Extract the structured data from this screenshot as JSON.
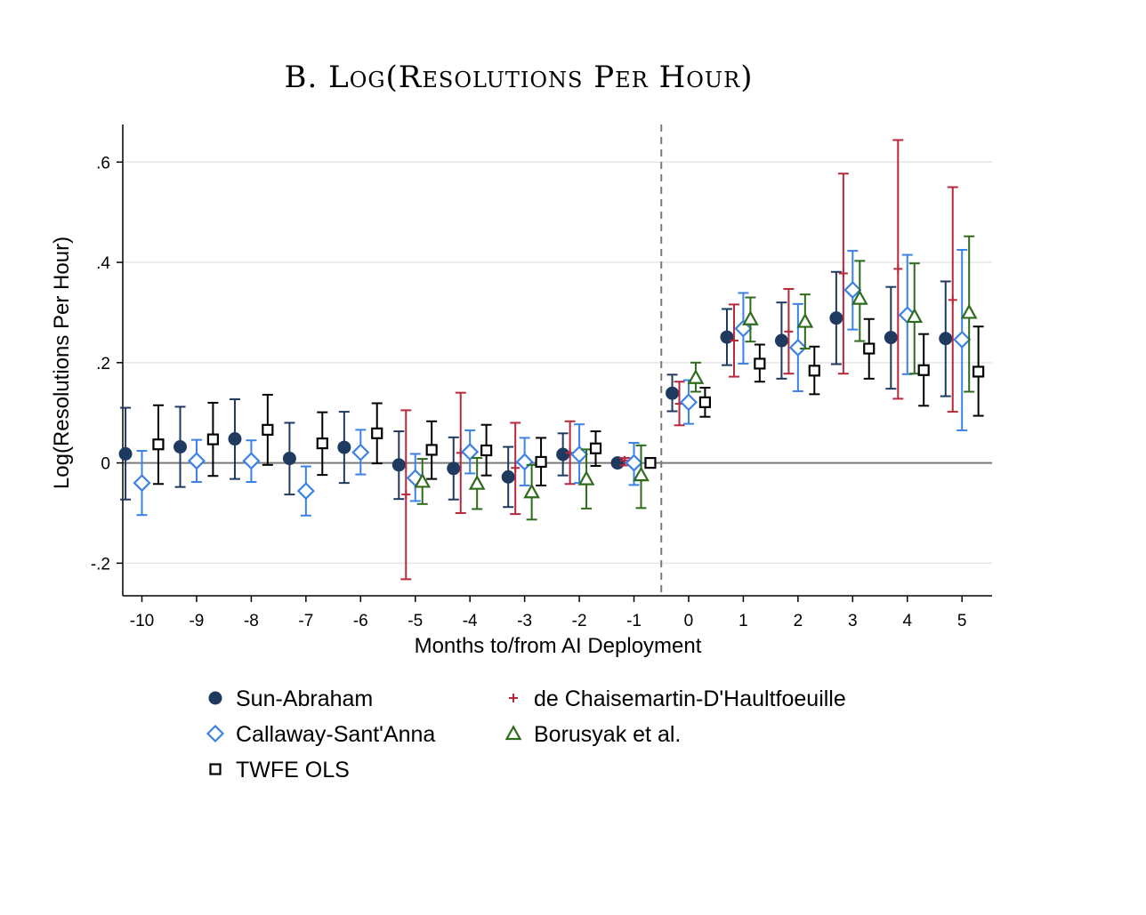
{
  "chart_data": {
    "type": "scatter",
    "title": "B. Log(Resolutions Per Hour)",
    "xlabel": "Months to/from AI Deployment",
    "ylabel": "Log(Resolutions Per Hour)",
    "xlim": [
      -10.35,
      5.55
    ],
    "ylim": [
      -0.265,
      0.675
    ],
    "xticks": [
      -10,
      -9,
      -8,
      -7,
      -6,
      -5,
      -4,
      -3,
      -2,
      -1,
      0,
      1,
      2,
      3,
      4,
      5
    ],
    "xtick_labels": [
      "-10",
      "-9",
      "-8",
      "-7",
      "-6",
      "-5",
      "-4",
      "-3",
      "-2",
      "-1",
      "0",
      "1",
      "2",
      "3",
      "4",
      "5"
    ],
    "yticks": [
      -0.2,
      0,
      0.2,
      0.4,
      0.6
    ],
    "ytick_labels": [
      "-.2",
      "0",
      ".2",
      ".4",
      ".6"
    ],
    "grid": true,
    "reference_line_x": -0.5,
    "reference_line_y": 0,
    "legend_position": "bottom",
    "series": [
      {
        "name": "Sun-Abraham",
        "marker": "circle-filled",
        "color": "#1f3a5f",
        "offset": -0.3,
        "points": [
          {
            "x": -10,
            "y": 0.018,
            "lo": -0.073,
            "hi": 0.11
          },
          {
            "x": -9,
            "y": 0.032,
            "lo": -0.048,
            "hi": 0.112
          },
          {
            "x": -8,
            "y": 0.048,
            "lo": -0.032,
            "hi": 0.127
          },
          {
            "x": -7,
            "y": 0.009,
            "lo": -0.063,
            "hi": 0.08
          },
          {
            "x": -6,
            "y": 0.031,
            "lo": -0.04,
            "hi": 0.102
          },
          {
            "x": -5,
            "y": -0.004,
            "lo": -0.072,
            "hi": 0.063
          },
          {
            "x": -4,
            "y": -0.011,
            "lo": -0.073,
            "hi": 0.051
          },
          {
            "x": -3,
            "y": -0.028,
            "lo": -0.088,
            "hi": 0.032
          },
          {
            "x": -2,
            "y": 0.017,
            "lo": -0.025,
            "hi": 0.059
          },
          {
            "x": -1,
            "y": 0.0,
            "lo": 0.0,
            "hi": 0.0
          },
          {
            "x": 0,
            "y": 0.139,
            "lo": 0.103,
            "hi": 0.176
          },
          {
            "x": 1,
            "y": 0.251,
            "lo": 0.195,
            "hi": 0.307
          },
          {
            "x": 2,
            "y": 0.244,
            "lo": 0.168,
            "hi": 0.32
          },
          {
            "x": 3,
            "y": 0.289,
            "lo": 0.197,
            "hi": 0.381
          },
          {
            "x": 4,
            "y": 0.25,
            "lo": 0.148,
            "hi": 0.351
          },
          {
            "x": 5,
            "y": 0.248,
            "lo": 0.133,
            "hi": 0.362
          }
        ]
      },
      {
        "name": "Callaway-Sant'Anna",
        "marker": "diamond-hollow",
        "color": "#3b82e6",
        "offset": 0.0,
        "points": [
          {
            "x": -10,
            "y": -0.04,
            "lo": -0.104,
            "hi": 0.024
          },
          {
            "x": -9,
            "y": 0.004,
            "lo": -0.038,
            "hi": 0.046
          },
          {
            "x": -8,
            "y": 0.004,
            "lo": -0.038,
            "hi": 0.045
          },
          {
            "x": -7,
            "y": -0.056,
            "lo": -0.105,
            "hi": -0.007
          },
          {
            "x": -6,
            "y": 0.021,
            "lo": -0.023,
            "hi": 0.066
          },
          {
            "x": -5,
            "y": -0.03,
            "lo": -0.076,
            "hi": 0.018
          },
          {
            "x": -4,
            "y": 0.022,
            "lo": -0.021,
            "hi": 0.065
          },
          {
            "x": -3,
            "y": 0.002,
            "lo": -0.045,
            "hi": 0.05
          },
          {
            "x": -2,
            "y": 0.017,
            "lo": -0.04,
            "hi": 0.077
          },
          {
            "x": -1,
            "y": 0.0,
            "lo": -0.044,
            "hi": 0.04
          },
          {
            "x": 0,
            "y": 0.121,
            "lo": 0.078,
            "hi": 0.165
          },
          {
            "x": 1,
            "y": 0.268,
            "lo": 0.198,
            "hi": 0.339
          },
          {
            "x": 2,
            "y": 0.23,
            "lo": 0.143,
            "hi": 0.317
          },
          {
            "x": 3,
            "y": 0.345,
            "lo": 0.266,
            "hi": 0.423
          },
          {
            "x": 4,
            "y": 0.295,
            "lo": 0.177,
            "hi": 0.415
          },
          {
            "x": 5,
            "y": 0.246,
            "lo": 0.065,
            "hi": 0.425
          }
        ]
      },
      {
        "name": "TWFE OLS",
        "marker": "square-hollow",
        "color": "#000000",
        "offset": 0.3,
        "points": [
          {
            "x": -10,
            "y": 0.037,
            "lo": -0.042,
            "hi": 0.115
          },
          {
            "x": -9,
            "y": 0.047,
            "lo": -0.026,
            "hi": 0.12
          },
          {
            "x": -8,
            "y": 0.066,
            "lo": -0.004,
            "hi": 0.136
          },
          {
            "x": -7,
            "y": 0.039,
            "lo": -0.024,
            "hi": 0.101
          },
          {
            "x": -6,
            "y": 0.059,
            "lo": -0.001,
            "hi": 0.119
          },
          {
            "x": -5,
            "y": 0.026,
            "lo": -0.032,
            "hi": 0.083
          },
          {
            "x": -4,
            "y": 0.025,
            "lo": -0.025,
            "hi": 0.076
          },
          {
            "x": -3,
            "y": 0.002,
            "lo": -0.045,
            "hi": 0.05
          },
          {
            "x": -2,
            "y": 0.029,
            "lo": -0.006,
            "hi": 0.063
          },
          {
            "x": -1,
            "y": 0.0,
            "lo": 0.0,
            "hi": 0.0
          },
          {
            "x": 0,
            "y": 0.121,
            "lo": 0.092,
            "hi": 0.15
          },
          {
            "x": 1,
            "y": 0.198,
            "lo": 0.162,
            "hi": 0.236
          },
          {
            "x": 2,
            "y": 0.184,
            "lo": 0.137,
            "hi": 0.232
          },
          {
            "x": 3,
            "y": 0.228,
            "lo": 0.168,
            "hi": 0.287
          },
          {
            "x": 4,
            "y": 0.185,
            "lo": 0.114,
            "hi": 0.257
          },
          {
            "x": 5,
            "y": 0.182,
            "lo": 0.094,
            "hi": 0.272
          }
        ]
      },
      {
        "name": "de Chaisemartin-D'Haultfoeuille",
        "marker": "plus",
        "color": "#b8283b",
        "offset": -0.17,
        "points": [
          {
            "x": -5,
            "y": -0.063,
            "lo": -0.232,
            "hi": 0.105
          },
          {
            "x": -4,
            "y": 0.02,
            "lo": -0.1,
            "hi": 0.14
          },
          {
            "x": -3,
            "y": -0.01,
            "lo": -0.102,
            "hi": 0.08
          },
          {
            "x": -2,
            "y": 0.02,
            "lo": -0.042,
            "hi": 0.083
          },
          {
            "x": -1,
            "y": 0.005,
            "lo": -0.005,
            "hi": 0.01
          },
          {
            "x": 0,
            "y": 0.118,
            "lo": 0.075,
            "hi": 0.162
          },
          {
            "x": 1,
            "y": 0.244,
            "lo": 0.172,
            "hi": 0.316
          },
          {
            "x": 2,
            "y": 0.262,
            "lo": 0.178,
            "hi": 0.347
          },
          {
            "x": 3,
            "y": 0.378,
            "lo": 0.178,
            "hi": 0.577
          },
          {
            "x": 4,
            "y": 0.387,
            "lo": 0.128,
            "hi": 0.644
          },
          {
            "x": 5,
            "y": 0.325,
            "lo": 0.102,
            "hi": 0.55
          }
        ]
      },
      {
        "name": "Borusyak et al.",
        "marker": "triangle-hollow",
        "color": "#2f6b1c",
        "offset": 0.13,
        "points": [
          {
            "x": -5,
            "y": -0.037,
            "lo": -0.082,
            "hi": 0.008
          },
          {
            "x": -4,
            "y": -0.041,
            "lo": -0.092,
            "hi": 0.01
          },
          {
            "x": -3,
            "y": -0.058,
            "lo": -0.113,
            "hi": -0.004
          },
          {
            "x": -2,
            "y": -0.032,
            "lo": -0.091,
            "hi": 0.027
          },
          {
            "x": -1,
            "y": -0.024,
            "lo": -0.09,
            "hi": 0.035
          },
          {
            "x": 0,
            "y": 0.17,
            "lo": 0.142,
            "hi": 0.2
          },
          {
            "x": 1,
            "y": 0.287,
            "lo": 0.242,
            "hi": 0.33
          },
          {
            "x": 2,
            "y": 0.282,
            "lo": 0.228,
            "hi": 0.336
          },
          {
            "x": 3,
            "y": 0.328,
            "lo": 0.243,
            "hi": 0.403
          },
          {
            "x": 4,
            "y": 0.292,
            "lo": 0.178,
            "hi": 0.398
          },
          {
            "x": 5,
            "y": 0.3,
            "lo": 0.142,
            "hi": 0.452
          }
        ]
      }
    ],
    "legend": [
      {
        "name": "Sun-Abraham",
        "marker": "circle-filled",
        "color": "#1f3a5f"
      },
      {
        "name": "de Chaisemartin-D'Haultfoeuille",
        "marker": "plus",
        "color": "#b8283b"
      },
      {
        "name": "Callaway-Sant'Anna",
        "marker": "diamond-hollow",
        "color": "#3b82e6"
      },
      {
        "name": "Borusyak et al.",
        "marker": "triangle-hollow",
        "color": "#2f6b1c"
      },
      {
        "name": "TWFE OLS",
        "marker": "square-hollow",
        "color": "#000000"
      }
    ]
  }
}
